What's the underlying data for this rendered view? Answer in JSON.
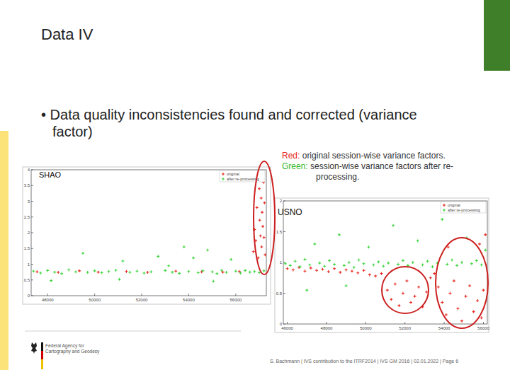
{
  "slide": {
    "title": "Data IV",
    "bullet": "• Data quality inconsistencies found and corrected (variance factor)",
    "annotation": [
      {
        "label": "Red:",
        "text": "original session-wise variance factors.",
        "color": "#e8261c"
      },
      {
        "label": "Green:",
        "text": "session-wise variance factors after re-processing.",
        "color": "#2fb82f"
      }
    ],
    "logo": [
      "Federal Agency for",
      "Cartography and Geodesy"
    ],
    "footer": "S. Bachmann | IVS contribution to the ITRF2014 | IVS GM 2016 | 02.01.2022 | Page 6"
  },
  "chart_data": [
    {
      "type": "scatter",
      "title": "SHAO",
      "legend": "upper right",
      "grid": false,
      "marker": "plus",
      "xlim": [
        47300,
        57300
      ],
      "xticks": [
        48000,
        50000,
        52000,
        54000,
        56000
      ],
      "ylim": [
        0,
        4
      ],
      "yticks": [
        0,
        0.5,
        1,
        1.5,
        2,
        2.5,
        3,
        3.5,
        4
      ],
      "series": [
        {
          "name": "original",
          "color": "#e8261c",
          "x": [
            47550,
            48450,
            49350,
            50150,
            51350,
            52250,
            53450,
            54550,
            55450,
            56150,
            56750,
            56800,
            56850,
            56900,
            56950,
            57000,
            57020,
            57050,
            57080,
            57100,
            57120,
            57150,
            57180,
            57200,
            57220,
            57250
          ],
          "values": [
            0.76,
            0.74,
            0.79,
            0.75,
            0.77,
            0.74,
            0.78,
            0.76,
            0.75,
            0.77,
            1.4,
            2.1,
            1.75,
            2.8,
            1.2,
            3.4,
            2.4,
            1.9,
            3.1,
            1.55,
            2.65,
            2.2,
            3.6,
            1.85,
            2.95,
            1.3
          ]
        },
        {
          "name": "after re-processing",
          "color": "#3cd43c",
          "x": [
            47400,
            47700,
            48000,
            48300,
            48600,
            48900,
            49200,
            49500,
            49700,
            50000,
            50300,
            50600,
            50900,
            51200,
            51500,
            51800,
            52100,
            52400,
            52700,
            53000,
            53300,
            53600,
            53800,
            54000,
            54200,
            54400,
            54600,
            54800,
            55000,
            55200,
            55400,
            55600,
            55800,
            56000,
            56200,
            56400,
            56600,
            56800,
            57000,
            57200,
            48150,
            51050,
            53150,
            55050
          ],
          "values": [
            0.78,
            0.72,
            0.8,
            0.75,
            0.7,
            0.82,
            0.76,
            1.35,
            0.74,
            0.79,
            0.73,
            0.77,
            0.81,
            1.1,
            0.74,
            0.78,
            0.72,
            0.76,
            1.25,
            0.8,
            0.75,
            0.71,
            1.55,
            0.77,
            1.2,
            0.73,
            0.79,
            1.45,
            0.76,
            0.7,
            0.81,
            0.74,
            1.15,
            0.78,
            0.72,
            0.8,
            0.75,
            0.77,
            0.73,
            0.79,
            0.48,
            0.52,
            0.95,
            0.46
          ]
        }
      ]
    },
    {
      "type": "scatter",
      "title": "USNO",
      "legend": "upper right",
      "grid": false,
      "marker": "plus",
      "xlim": [
        45800,
        56200
      ],
      "xticks": [
        46000,
        48000,
        50000,
        52000,
        54000,
        56000
      ],
      "ylim": [
        0,
        2
      ],
      "yticks": [
        0,
        0.5,
        1,
        1.5,
        2
      ],
      "series": [
        {
          "name": "original",
          "color": "#e8261c",
          "x": [
            46000,
            46300,
            46600,
            46900,
            47200,
            47500,
            47800,
            48100,
            48400,
            48700,
            49000,
            49300,
            49600,
            49900,
            50200,
            50500,
            50800,
            51100,
            51300,
            51500,
            51700,
            51900,
            52100,
            52300,
            52500,
            52700,
            52900,
            53100,
            53300,
            53500,
            53700,
            53900,
            54100,
            54300,
            54500,
            54700,
            54900,
            55100,
            55300,
            55500,
            55700,
            55800,
            55900,
            56000,
            56100,
            54200
          ],
          "values": [
            0.9,
            0.88,
            0.92,
            0.86,
            0.91,
            0.87,
            0.89,
            0.85,
            0.9,
            0.84,
            0.88,
            0.86,
            0.83,
            0.87,
            0.8,
            0.78,
            0.82,
            0.55,
            0.4,
            0.65,
            0.3,
            0.5,
            0.7,
            0.35,
            0.45,
            0.6,
            0.28,
            0.52,
            0.75,
            0.82,
            0.6,
            0.35,
            0.15,
            0.5,
            0.7,
            0.25,
            0.05,
            0.45,
            0.62,
            0.2,
            0.38,
            1.3,
            0.1,
            0.55,
            1.45,
            1.25
          ]
        },
        {
          "name": "after re-processing",
          "color": "#3cd43c",
          "x": [
            45900,
            46150,
            46400,
            46650,
            46900,
            47150,
            47400,
            47650,
            47900,
            48150,
            48400,
            48650,
            48900,
            49150,
            49400,
            49650,
            49900,
            50150,
            50400,
            50650,
            50900,
            51150,
            51400,
            51650,
            51900,
            52150,
            52400,
            52650,
            52900,
            53150,
            53400,
            53650,
            53900,
            54150,
            54400,
            54650,
            54900,
            55150,
            55400,
            55650,
            55900,
            56100,
            47000,
            49000
          ],
          "values": [
            0.98,
            0.95,
            1.02,
            0.93,
            1.05,
            0.96,
            1.3,
            0.99,
            0.94,
            1.03,
            0.97,
            1.45,
            0.95,
            1.0,
            0.92,
            1.04,
            0.98,
            1.25,
            0.96,
            1.01,
            0.94,
            0.99,
            1.6,
            0.97,
            1.03,
            0.95,
            1.0,
            1.35,
            0.96,
            1.02,
            0.93,
            0.99,
            1.7,
            0.97,
            1.04,
            0.95,
            1.0,
            1.4,
            0.98,
            1.03,
            0.96,
            1.2,
            0.55,
            0.62
          ]
        }
      ]
    }
  ]
}
